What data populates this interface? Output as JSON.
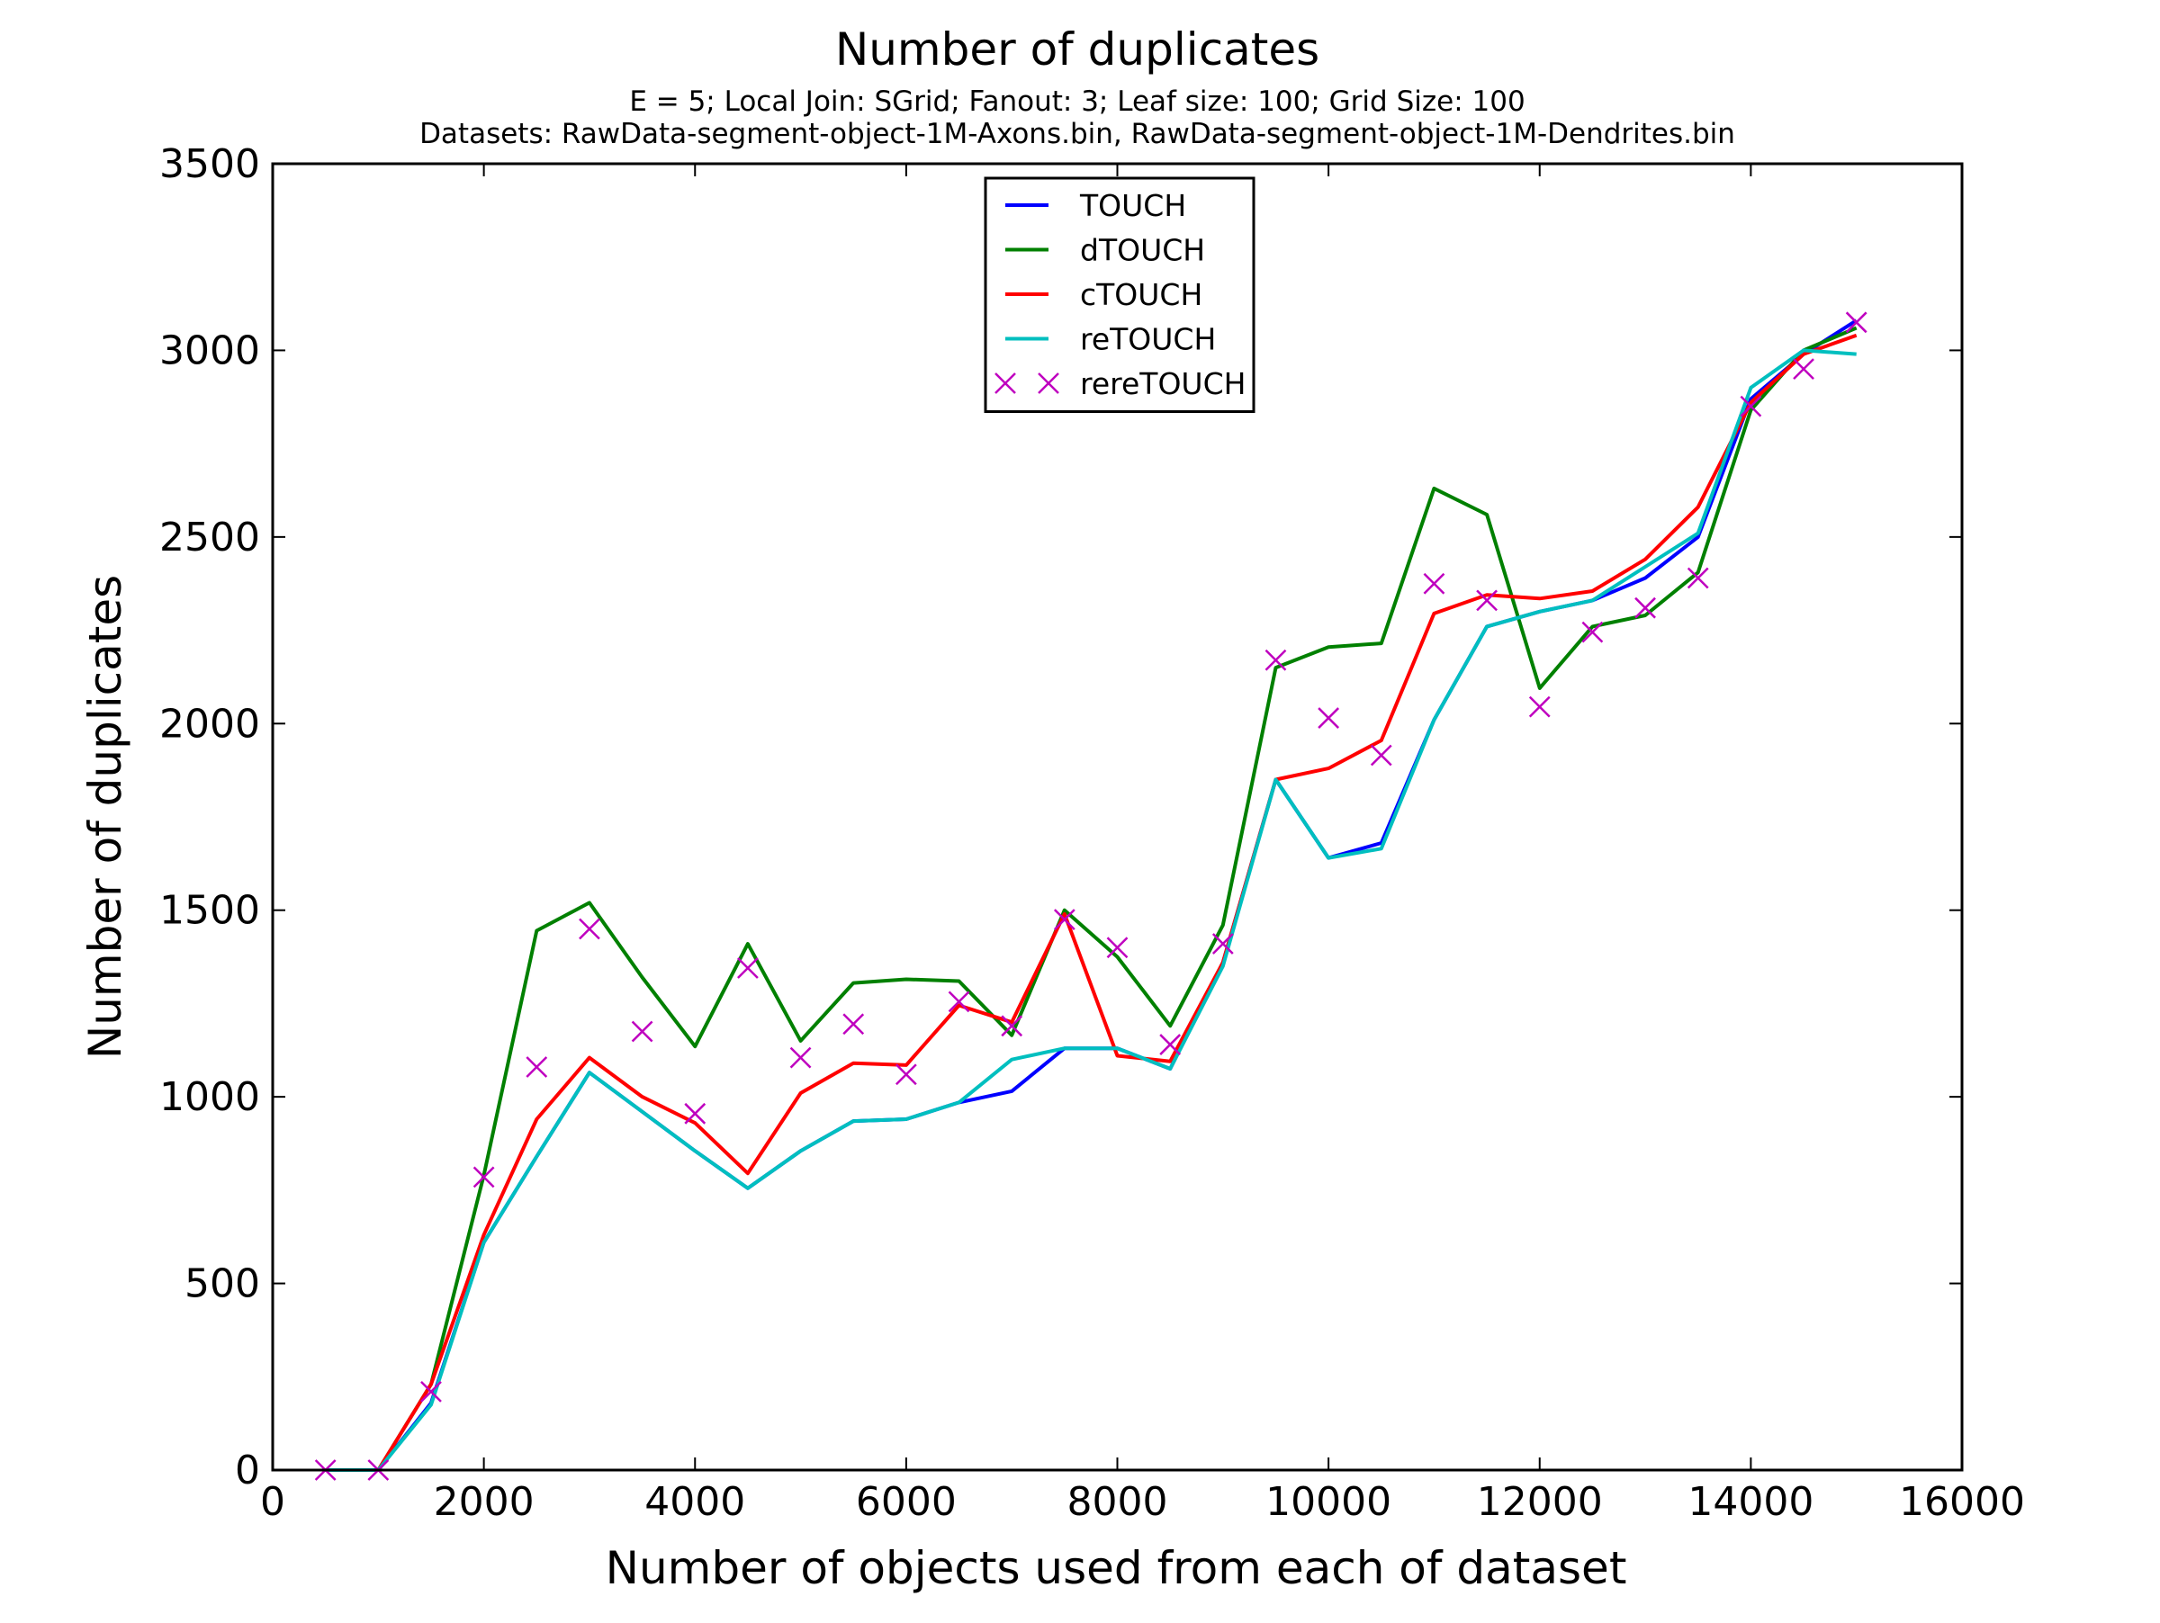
{
  "chart_data": {
    "type": "line",
    "title": "Number of duplicates",
    "subtitle_lines": [
      "E = 5; Local Join: SGrid; Fanout: 3; Leaf size: 100; Grid Size: 100",
      "Datasets: RawData-segment-object-1M-Axons.bin, RawData-segment-object-1M-Dendrites.bin"
    ],
    "xlabel": "Number of objects used from each of dataset",
    "ylabel": "Number of duplicates",
    "xlim": [
      0,
      16000
    ],
    "ylim": [
      0,
      3500
    ],
    "xticks": [
      0,
      2000,
      4000,
      6000,
      8000,
      10000,
      12000,
      14000,
      16000
    ],
    "yticks": [
      0,
      500,
      1000,
      1500,
      2000,
      2500,
      3000,
      3500
    ],
    "xtick_labels": [
      "0",
      "2000",
      "4000",
      "6000",
      "8000",
      "10000",
      "12000",
      "14000",
      "16000"
    ],
    "ytick_labels": [
      "0",
      "500",
      "1000",
      "1500",
      "2000",
      "2500",
      "3000",
      "3500"
    ],
    "grid": false,
    "legend_position": "top-center",
    "x": [
      500,
      1000,
      1500,
      2000,
      2500,
      3000,
      3500,
      4000,
      4500,
      5000,
      5500,
      6000,
      6500,
      7000,
      7500,
      8000,
      8500,
      9000,
      9500,
      10000,
      10500,
      11000,
      11500,
      12000,
      12500,
      13000,
      13500,
      14000,
      14500,
      15000
    ],
    "series": [
      {
        "name": "TOUCH",
        "color": "#0000ff",
        "style": "line",
        "values": [
          0,
          0,
          180,
          610,
          840,
          1065,
          960,
          855,
          755,
          855,
          935,
          940,
          985,
          1015,
          1130,
          1130,
          1075,
          1360,
          1850,
          1640,
          1680,
          2010,
          2260,
          2300,
          2330,
          2390,
          2500,
          2870,
          2990,
          3080
        ]
      },
      {
        "name": "dTOUCH",
        "color": "#008000",
        "style": "line",
        "values": [
          0,
          0,
          230,
          790,
          1445,
          1520,
          1320,
          1135,
          1410,
          1150,
          1305,
          1315,
          1310,
          1165,
          1500,
          1375,
          1190,
          1460,
          2150,
          2205,
          2215,
          2630,
          2560,
          2095,
          2260,
          2290,
          2405,
          2840,
          3000,
          3060
        ]
      },
      {
        "name": "cTOUCH",
        "color": "#ff0000",
        "style": "line",
        "values": [
          0,
          0,
          230,
          630,
          940,
          1105,
          1000,
          930,
          795,
          1010,
          1090,
          1085,
          1245,
          1200,
          1490,
          1110,
          1095,
          1360,
          1850,
          1880,
          1955,
          2295,
          2345,
          2335,
          2355,
          2440,
          2580,
          2860,
          2990,
          3040
        ]
      },
      {
        "name": "reTOUCH",
        "color": "#00bfbf",
        "style": "line",
        "values": [
          0,
          0,
          175,
          610,
          840,
          1065,
          960,
          855,
          755,
          855,
          935,
          940,
          985,
          1100,
          1130,
          1130,
          1075,
          1350,
          1850,
          1640,
          1665,
          2010,
          2260,
          2300,
          2330,
          2420,
          2510,
          2900,
          3000,
          2990
        ]
      },
      {
        "name": "rereTOUCH",
        "color": "#bf00bf",
        "style": "x-marker",
        "values": [
          0,
          0,
          210,
          785,
          1080,
          1450,
          1175,
          955,
          1345,
          1105,
          1195,
          1060,
          1255,
          1190,
          1475,
          1400,
          1140,
          1410,
          2170,
          2015,
          1915,
          2375,
          2330,
          2045,
          2245,
          2310,
          2390,
          2850,
          2950,
          3075
        ]
      }
    ]
  }
}
